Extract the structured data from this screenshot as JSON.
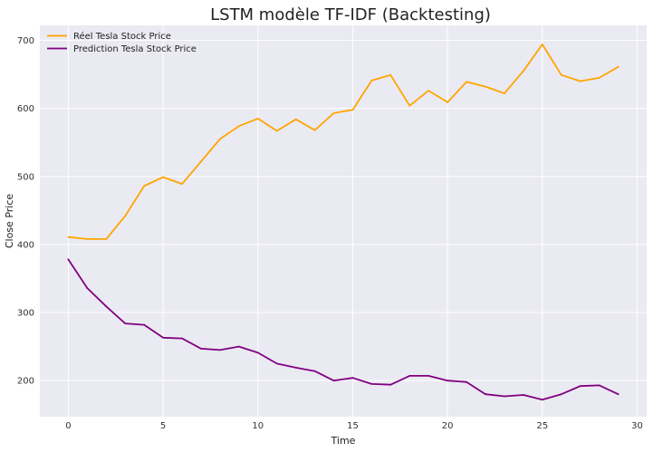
{
  "chart_data": {
    "type": "line",
    "title": "LSTM modèle TF-IDF (Backtesting)",
    "xlabel": "Time",
    "ylabel": "Close Price",
    "xlim": [
      -1.5,
      30.5
    ],
    "ylim": [
      147,
      722
    ],
    "x_ticks": [
      0,
      5,
      10,
      15,
      20,
      25,
      30
    ],
    "y_ticks": [
      200,
      300,
      400,
      500,
      600,
      700
    ],
    "grid": true,
    "legend_position": "top-left",
    "background": "#eaeaf2",
    "x": [
      0,
      1,
      2,
      3,
      4,
      5,
      6,
      7,
      8,
      9,
      10,
      11,
      12,
      13,
      14,
      15,
      16,
      17,
      18,
      19,
      20,
      21,
      22,
      23,
      24,
      25,
      26,
      27,
      28,
      29
    ],
    "series": [
      {
        "name": "Réel Tesla Stock Price",
        "color": "#ffa500",
        "values": [
          411,
          408,
          408,
          442,
          486,
          499,
          489,
          522,
          555,
          574,
          585,
          567,
          584,
          568,
          593,
          598,
          641,
          649,
          604,
          626,
          609,
          639,
          632,
          622,
          655,
          694,
          649,
          640,
          645,
          661
        ]
      },
      {
        "name": "Prediction Tesla Stock Price",
        "color": "#800080",
        "values": [
          378,
          336,
          309,
          284,
          282,
          263,
          262,
          247,
          245,
          250,
          241,
          225,
          219,
          214,
          200,
          204,
          195,
          194,
          207,
          207,
          200,
          198,
          180,
          177,
          179,
          172,
          180,
          192,
          193,
          180
        ]
      }
    ]
  }
}
